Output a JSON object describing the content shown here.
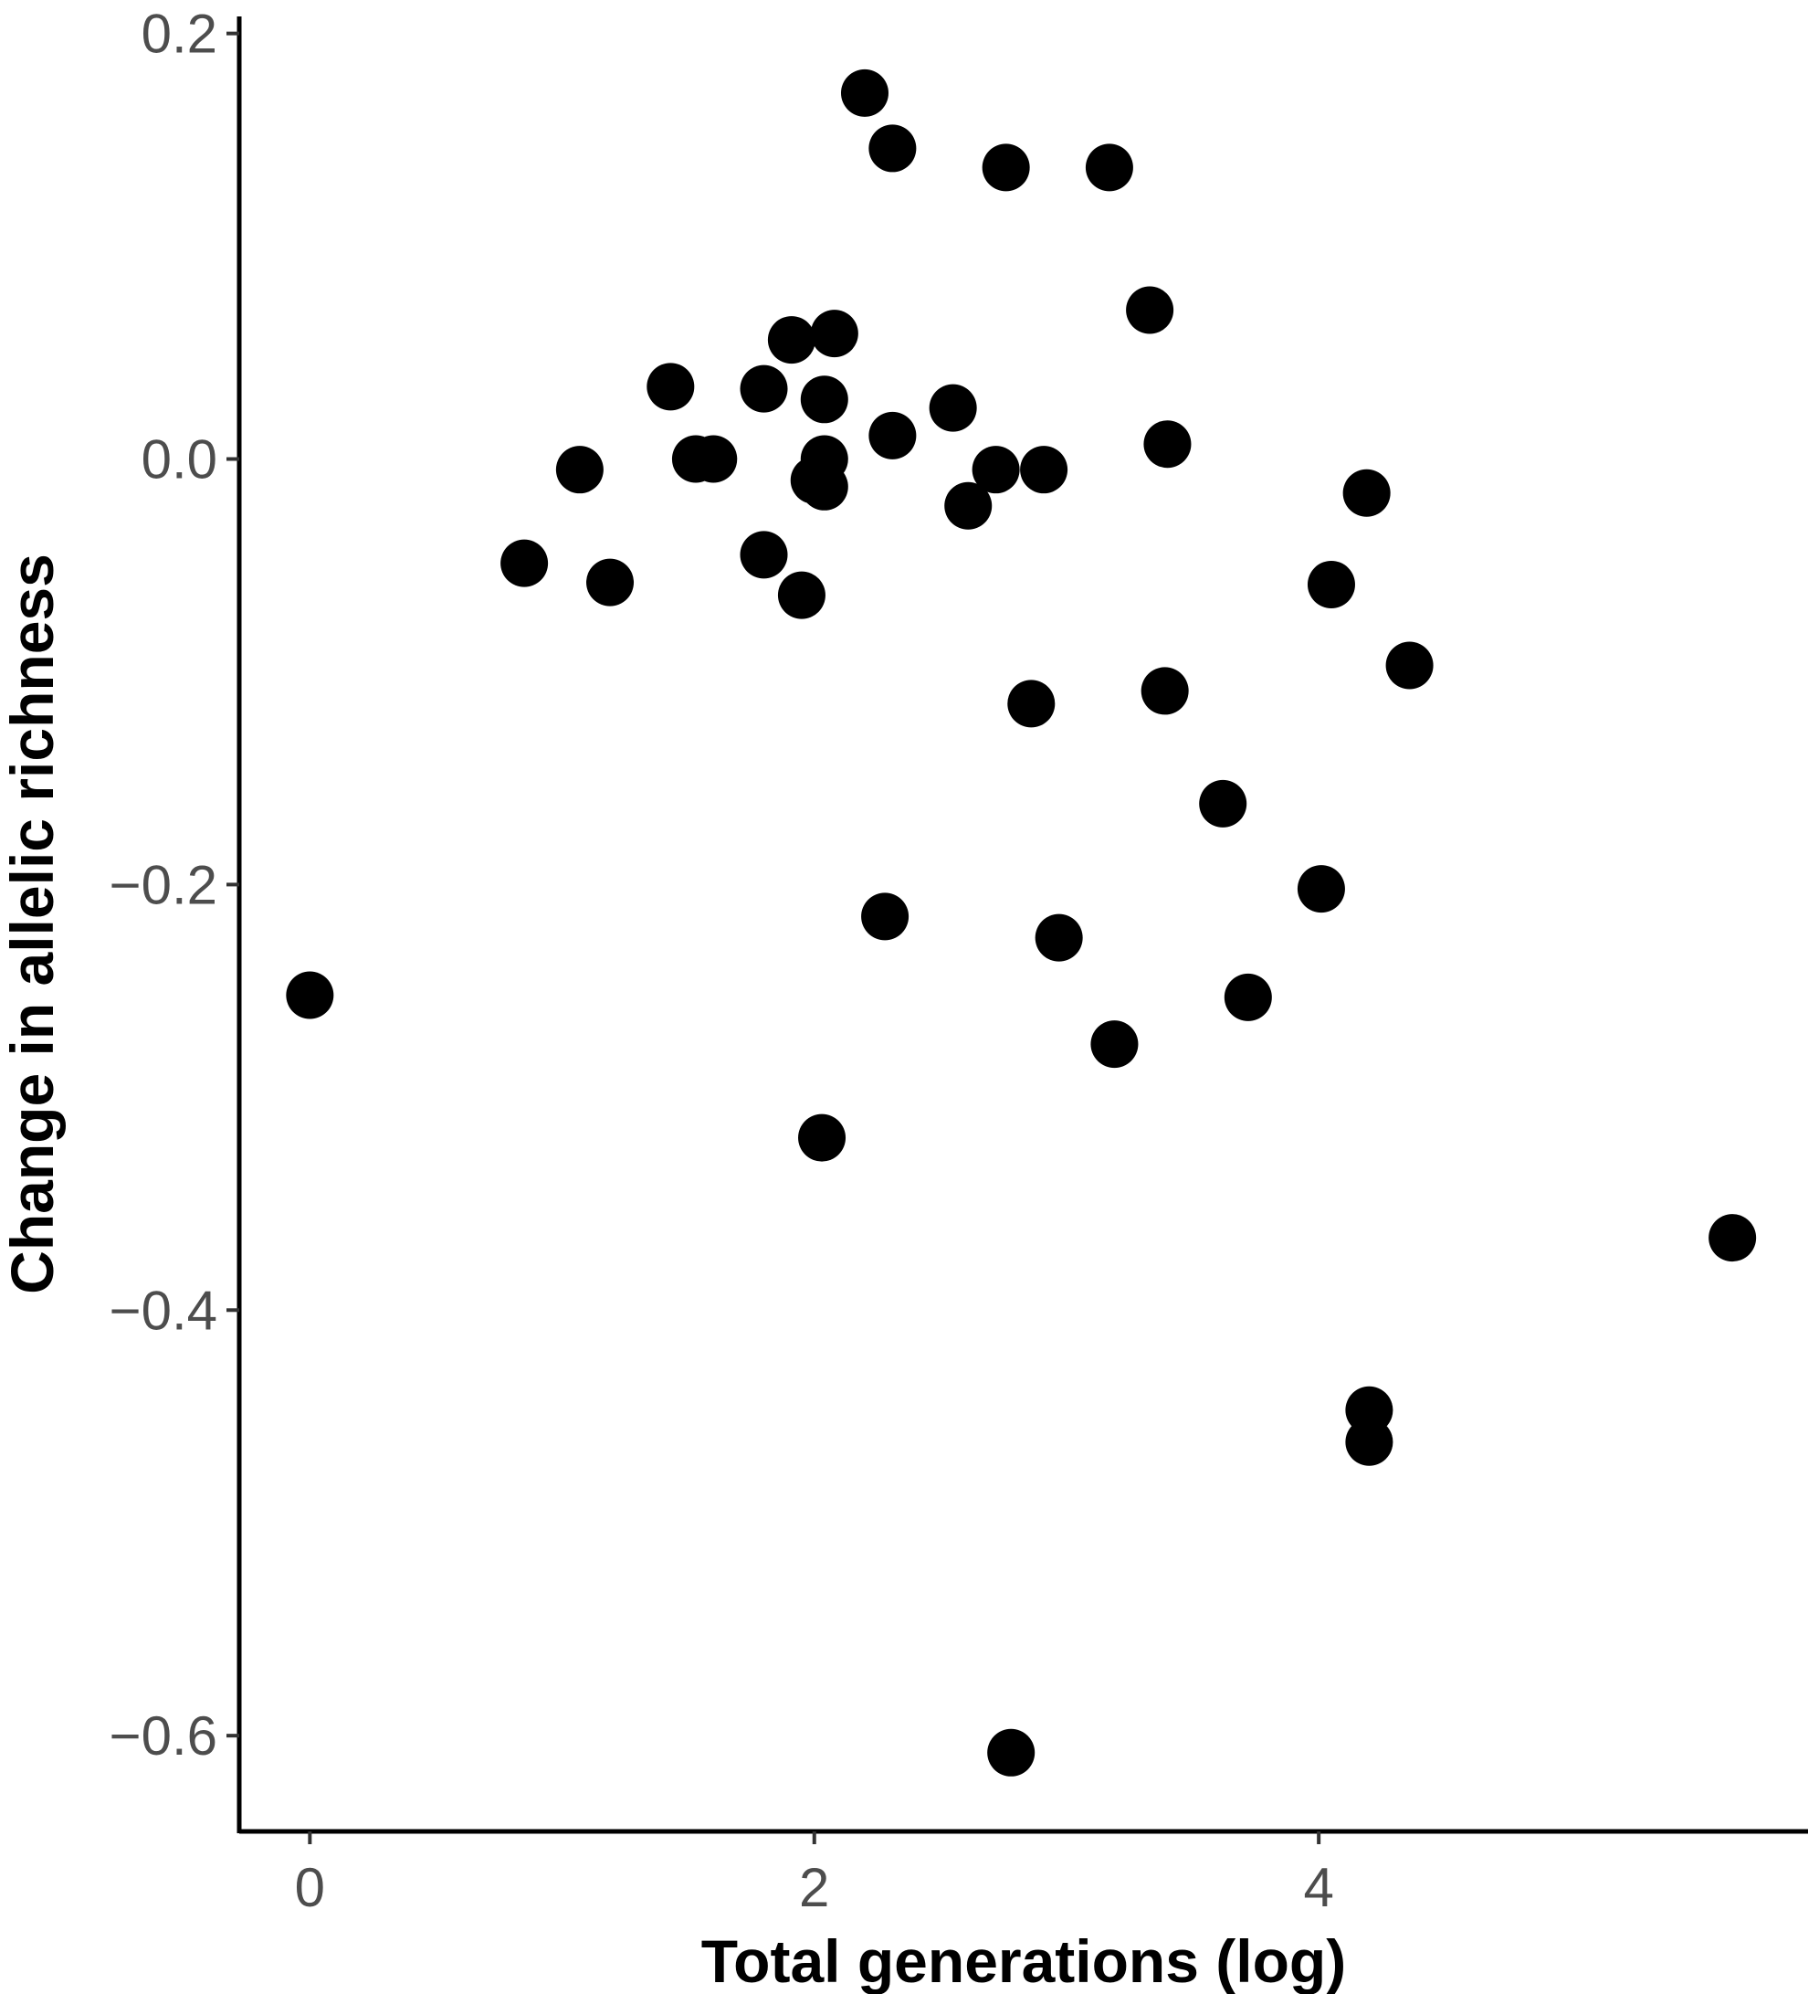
{
  "chart_data": {
    "type": "scatter",
    "xlabel": "Total generations (log)",
    "ylabel": "Change in allelic richness",
    "xlim": [
      -0.28,
      5.94
    ],
    "ylim": [
      -0.645,
      0.208
    ],
    "xticks": [
      {
        "value": 0,
        "label": "0"
      },
      {
        "value": 2,
        "label": "2"
      },
      {
        "value": 4,
        "label": "4"
      }
    ],
    "yticks": [
      {
        "value": 0.2,
        "label": "0.2"
      },
      {
        "value": 0.0,
        "label": "0.0"
      },
      {
        "value": -0.2,
        "label": "−0.2"
      },
      {
        "value": -0.4,
        "label": "−0.4"
      },
      {
        "value": -0.6,
        "label": "−0.6"
      }
    ],
    "grid": false,
    "legend": "none",
    "point_color": "#000000",
    "points": [
      {
        "x": 0.0,
        "y": -0.252
      },
      {
        "x": 0.85,
        "y": -0.049
      },
      {
        "x": 1.07,
        "y": -0.005
      },
      {
        "x": 1.19,
        "y": -0.058
      },
      {
        "x": 1.43,
        "y": 0.034
      },
      {
        "x": 1.53,
        "y": 0.0
      },
      {
        "x": 1.6,
        "y": 0.0
      },
      {
        "x": 1.8,
        "y": 0.033
      },
      {
        "x": 1.8,
        "y": -0.045
      },
      {
        "x": 1.91,
        "y": 0.056
      },
      {
        "x": 1.95,
        "y": -0.064
      },
      {
        "x": 2.0,
        "y": -0.01
      },
      {
        "x": 2.03,
        "y": -0.319
      },
      {
        "x": 2.04,
        "y": 0.028
      },
      {
        "x": 2.04,
        "y": 0.0
      },
      {
        "x": 2.04,
        "y": -0.013
      },
      {
        "x": 2.08,
        "y": 0.059
      },
      {
        "x": 2.2,
        "y": 0.172
      },
      {
        "x": 2.28,
        "y": -0.215
      },
      {
        "x": 2.31,
        "y": 0.146
      },
      {
        "x": 2.31,
        "y": 0.011
      },
      {
        "x": 2.55,
        "y": 0.024
      },
      {
        "x": 2.61,
        "y": -0.022
      },
      {
        "x": 2.72,
        "y": -0.005
      },
      {
        "x": 2.76,
        "y": 0.137
      },
      {
        "x": 2.78,
        "y": -0.608
      },
      {
        "x": 2.86,
        "y": -0.115
      },
      {
        "x": 2.91,
        "y": -0.005
      },
      {
        "x": 2.97,
        "y": -0.225
      },
      {
        "x": 3.17,
        "y": 0.137
      },
      {
        "x": 3.19,
        "y": -0.275
      },
      {
        "x": 3.33,
        "y": 0.07
      },
      {
        "x": 3.39,
        "y": -0.109
      },
      {
        "x": 3.4,
        "y": 0.007
      },
      {
        "x": 3.62,
        "y": -0.162
      },
      {
        "x": 3.72,
        "y": -0.253
      },
      {
        "x": 4.01,
        "y": -0.202
      },
      {
        "x": 4.05,
        "y": -0.059
      },
      {
        "x": 4.19,
        "y": -0.016
      },
      {
        "x": 4.2,
        "y": -0.447
      },
      {
        "x": 4.2,
        "y": -0.462
      },
      {
        "x": 4.36,
        "y": -0.097
      },
      {
        "x": 5.64,
        "y": -0.366
      }
    ]
  }
}
